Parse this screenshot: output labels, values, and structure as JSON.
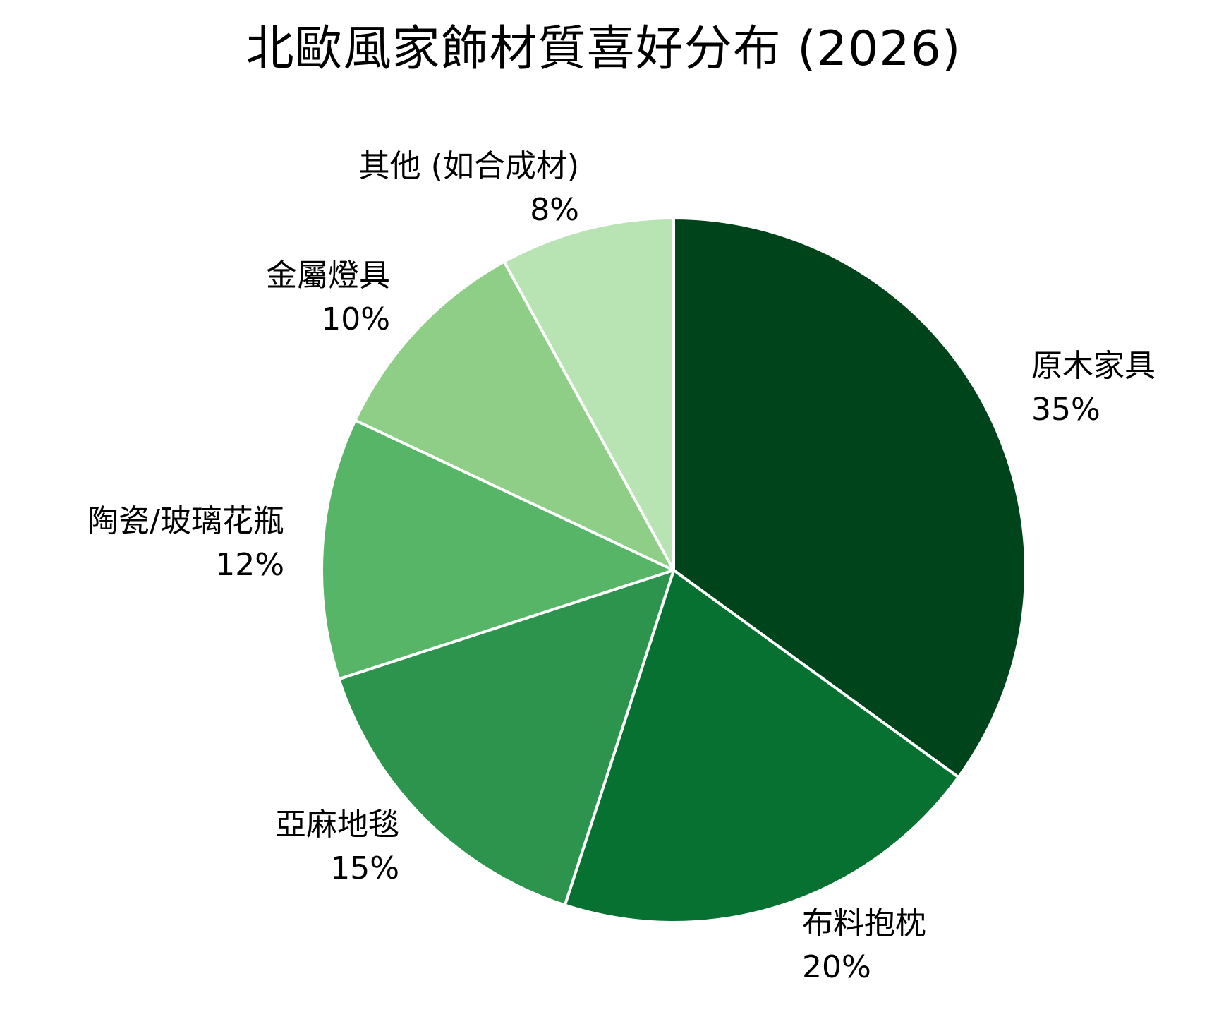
{
  "chart_data": {
    "type": "pie",
    "title": "北歐風家飾材質喜好分布 (2026)",
    "categories": [
      "原木家具",
      "布料抱枕",
      "亞麻地毯",
      "陶瓷/玻璃花瓶",
      "金屬燈具",
      "其他 (如合成材)"
    ],
    "values": [
      35,
      20,
      15,
      12,
      10,
      8
    ],
    "value_labels": [
      "35%",
      "20%",
      "15%",
      "12%",
      "10%",
      "8%"
    ],
    "colors": [
      "#00441b",
      "#067130",
      "#2c944c",
      "#56b567",
      "#8ece87",
      "#b8e3b2"
    ],
    "start_angle": "12 o'clock",
    "direction": "clockwise",
    "legend": "none (labels outside slices)",
    "unit": "%"
  },
  "title": "北歐風家飾材質喜好分布 (2026)",
  "labels": [
    {
      "name": "原木家具",
      "pct": "35%"
    },
    {
      "name": "布料抱枕",
      "pct": "20%"
    },
    {
      "name": "亞麻地毯",
      "pct": "15%"
    },
    {
      "name": "陶瓷/玻璃花瓶",
      "pct": "12%"
    },
    {
      "name": "金屬燈具",
      "pct": "10%"
    },
    {
      "name": "其他 (如合成材)",
      "pct": "8%"
    }
  ]
}
